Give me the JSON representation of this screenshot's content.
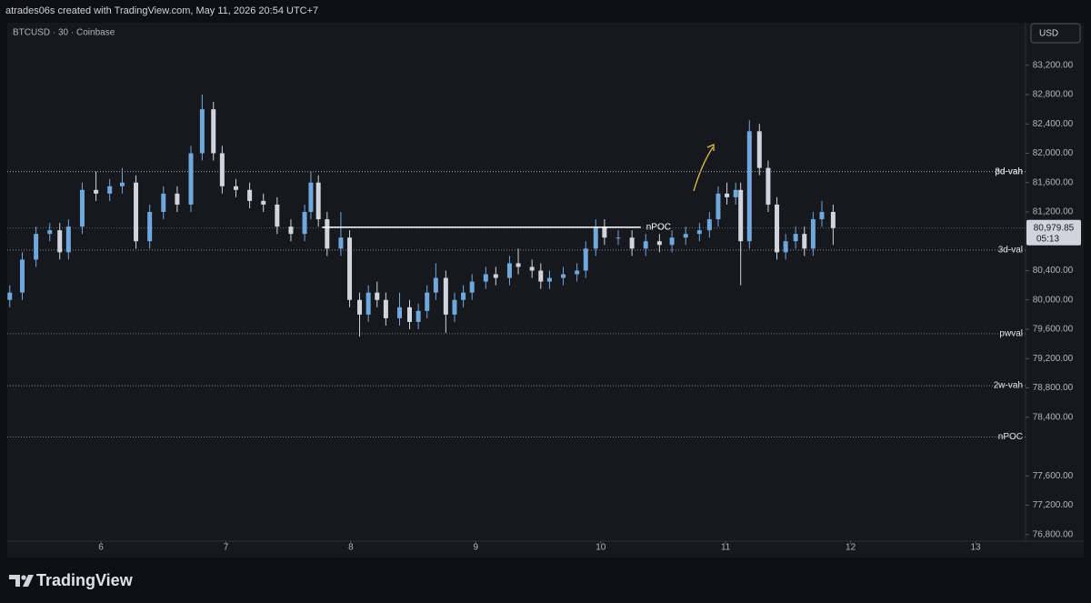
{
  "header": "atrades06s created with TradingView.com, May 11, 2026 20:54 UTC+7",
  "brand": "TradingView",
  "chart_data": {
    "type": "candlestick",
    "title": "BTCUSD · 30 · Coinbase",
    "currency": "USD",
    "up_color": "#6fa8dc",
    "down_color": "#d1d4dc",
    "x": [
      5.27,
      5.37,
      5.48,
      5.59,
      5.67,
      5.74,
      5.85,
      5.96,
      6.07,
      6.17,
      6.28,
      6.39,
      6.5,
      6.61,
      6.72,
      6.81,
      6.9,
      6.97,
      7.08,
      7.19,
      7.3,
      7.41,
      7.52,
      7.63,
      7.68,
      7.74,
      7.81,
      7.92,
      7.99,
      8.07,
      8.14,
      8.21,
      8.28,
      8.39,
      8.47,
      8.54,
      8.61,
      8.68,
      8.76,
      8.83,
      8.9,
      8.97,
      9.08,
      9.16,
      9.27,
      9.34,
      9.45,
      9.52,
      9.59,
      9.7,
      9.81,
      9.88,
      9.96,
      10.03,
      10.14,
      10.25,
      10.36,
      10.47,
      10.57,
      10.68,
      10.79,
      10.87,
      10.94,
      11.01,
      11.08,
      11.12,
      11.19,
      11.27,
      11.34,
      11.41,
      11.48,
      11.56,
      11.63,
      11.7,
      11.77,
      11.86
    ],
    "opens": [
      80000,
      80100,
      80550,
      80900,
      80950,
      80650,
      81000,
      81500,
      81450,
      81550,
      81600,
      80800,
      81200,
      81450,
      81300,
      82000,
      82600,
      82000,
      81550,
      81500,
      81350,
      81300,
      81000,
      80900,
      81200,
      81600,
      81100,
      80700,
      80850,
      80000,
      79800,
      80100,
      80000,
      79750,
      79900,
      79700,
      79850,
      80100,
      80300,
      79800,
      80000,
      80100,
      80250,
      80350,
      80300,
      80500,
      80450,
      80400,
      80250,
      80300,
      80350,
      80400,
      80700,
      81000,
      80850,
      80850,
      80700,
      80800,
      80750,
      80850,
      80900,
      80950,
      81100,
      81450,
      81400,
      81500,
      80800,
      82300,
      81800,
      81300,
      80650,
      80800,
      80900,
      80700,
      81100,
      81200
    ],
    "highs": [
      80200,
      80650,
      81000,
      81050,
      81050,
      81100,
      81600,
      81750,
      81650,
      81800,
      81700,
      81300,
      81550,
      81550,
      82100,
      82800,
      82700,
      82100,
      81650,
      81600,
      81450,
      81400,
      81100,
      81300,
      81750,
      81700,
      81200,
      81200,
      80950,
      80100,
      80200,
      80250,
      80100,
      80100,
      80000,
      79950,
      80200,
      80500,
      80400,
      80100,
      80200,
      80350,
      80450,
      80450,
      80600,
      80700,
      80550,
      80500,
      80400,
      80450,
      80500,
      80800,
      81100,
      81100,
      80950,
      80950,
      80900,
      80900,
      80950,
      81000,
      81050,
      81200,
      81550,
      81600,
      81600,
      81600,
      82450,
      82400,
      81900,
      81400,
      80900,
      81000,
      81000,
      81200,
      81350,
      81300
    ],
    "lows": [
      79900,
      80000,
      80450,
      80800,
      80550,
      80550,
      80900,
      81350,
      81350,
      81450,
      80700,
      80700,
      81100,
      81200,
      81200,
      81900,
      81900,
      81450,
      81400,
      81250,
      81200,
      80900,
      80800,
      80800,
      81100,
      81000,
      80600,
      80600,
      79900,
      79500,
      79700,
      79900,
      79650,
      79650,
      79600,
      79600,
      79750,
      80000,
      79550,
      79700,
      79900,
      80000,
      80150,
      80200,
      80200,
      80350,
      80300,
      80150,
      80150,
      80200,
      80250,
      80300,
      80600,
      80750,
      80750,
      80600,
      80600,
      80650,
      80650,
      80750,
      80800,
      80850,
      81000,
      81300,
      81300,
      80200,
      80700,
      81700,
      81200,
      80550,
      80550,
      80700,
      80600,
      80600,
      81000,
      80750
    ],
    "closes": [
      80100,
      80550,
      80900,
      80950,
      80650,
      81000,
      81500,
      81450,
      81550,
      81600,
      80800,
      81200,
      81450,
      81300,
      82000,
      82600,
      82000,
      81550,
      81500,
      81350,
      81300,
      81000,
      80900,
      81200,
      81600,
      81100,
      80700,
      80850,
      80000,
      79800,
      80100,
      80000,
      79750,
      79900,
      79700,
      79850,
      80100,
      80300,
      79800,
      80000,
      80100,
      80250,
      80350,
      80300,
      80500,
      80450,
      80400,
      80250,
      80300,
      80350,
      80400,
      80700,
      81000,
      80850,
      80850,
      80700,
      80800,
      80750,
      80850,
      80900,
      80950,
      81100,
      81450,
      81400,
      81500,
      80800,
      82300,
      81800,
      81300,
      80650,
      80800,
      80900,
      80700,
      81100,
      81200,
      80979.85
    ],
    "xlim": [
      5.25,
      13.4
    ],
    "xticks": [
      6,
      7,
      8,
      9,
      10,
      11,
      12,
      13
    ],
    "ylim": [
      76710,
      83780
    ],
    "yticks": [
      {
        "value": 83200,
        "label": "83,200.00"
      },
      {
        "value": 82800,
        "label": "82,800.00"
      },
      {
        "value": 82400,
        "label": "82,400.00"
      },
      {
        "value": 82000,
        "label": "82,000.00"
      },
      {
        "value": 81600,
        "label": "81,600.00"
      },
      {
        "value": 81200,
        "label": "81,200.00"
      },
      {
        "value": 80400,
        "label": "80,400.00"
      },
      {
        "value": 80000,
        "label": "80,000.00"
      },
      {
        "value": 79600,
        "label": "79,600.00"
      },
      {
        "value": 79200,
        "label": "79,200.00"
      },
      {
        "value": 78800,
        "label": "78,800.00"
      },
      {
        "value": 78400,
        "label": "78,400.00"
      },
      {
        "value": 77600,
        "label": "77,600.00"
      },
      {
        "value": 77200,
        "label": "77,200.00"
      },
      {
        "value": 76800,
        "label": "76,800.00"
      }
    ],
    "levels": [
      {
        "label": "3d-vah",
        "value": 81750
      },
      {
        "label": "pd-vah",
        "value": 81750
      },
      {
        "label": "3d-val",
        "value": 80680
      },
      {
        "label": "pwval",
        "value": 79540
      },
      {
        "label": "2w-vah",
        "value": 78830
      },
      {
        "label": "nPOC",
        "value": 78130
      }
    ],
    "poc": {
      "label": "nPOC",
      "value": 80990,
      "x_start": 7.77,
      "x_end": 10.32
    },
    "last_price": {
      "value": 80979.85,
      "label": "80,979.85"
    },
    "countdown": "05:13"
  }
}
